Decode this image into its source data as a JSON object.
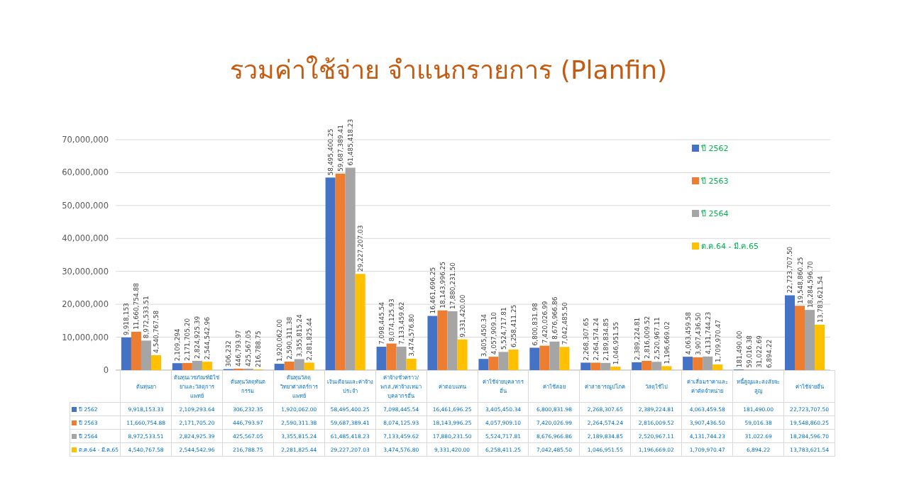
{
  "chart_data": [
    {
      "type": "bar",
      "title": "รวมค่าใช้จ่าย จำแนกรายการ (Planfin)",
      "categories": [
        null,
        null,
        null,
        null,
        null,
        null,
        null,
        null,
        null,
        null,
        null,
        null,
        null,
        null
      ],
      "series": [
        {
          "name": "ปี 2562",
          "color": "#4472c4",
          "values": [
            9918153.33,
            2109293.64,
            306232.35,
            1920062.0,
            58495400.25,
            7098445.54,
            16461696.25,
            3405450.34,
            6800831.98,
            2268307.65,
            2389224.81,
            4063459.58,
            181490.0,
            22723707.5
          ],
          "value_labels": [
            "9,918,153",
            "2,109,294",
            "306,232",
            "1,920,062.00",
            "58,495,400.25",
            "7,098,445.54",
            "16,461,696.25",
            "3,405,450.34",
            "6,800,831.98",
            "2,268,307.65",
            "2,389,224.81",
            "4,063,459.58",
            "181,490.00",
            "22,723,707.50"
          ]
        },
        {
          "name": "ปี 2563",
          "color": "#ed7d31",
          "values": [
            11660754.88,
            2171705.2,
            446793.97,
            2590311.38,
            59687389.41,
            8074125.93,
            18143996.25,
            4057909.1,
            7420026.99,
            2264574.24,
            2816009.52,
            3907436.5,
            59016.38,
            19548860.25
          ],
          "value_labels": [
            "11,660,754.88",
            "2,171,705.20",
            "446,793.97",
            "2,590,311.38",
            "59,687,389.41",
            "8,074,125.93",
            "18,143,996.25",
            "4,057,909.10",
            "7,420,026.99",
            "2,264,574.24",
            "2,816,009.52",
            "3,907,436.50",
            "59,016.38",
            "19,548,860.25"
          ]
        },
        {
          "name": "ปี 2564",
          "color": "#a5a5a5",
          "values": [
            8972533.51,
            2824925.39,
            425567.05,
            3355815.24,
            61485418.23,
            7133459.62,
            17880231.5,
            5524717.81,
            8676966.86,
            2189834.85,
            2520967.11,
            4131744.23,
            31022.69,
            18284596.7
          ],
          "value_labels": [
            "8,972,533.51",
            "2,824,925.39",
            "425,567.05",
            "3,355,815.24",
            "61,485,418.23",
            "7,133,459.62",
            "17,880,231.50",
            "5,524,717.81",
            "8,676,966.86",
            "2,189,834.85",
            "2,520,967.11",
            "4,131,744.23",
            "31,022.69",
            "18,284,596.70"
          ]
        },
        {
          "name": "ต.ค.64 - มี.ค.65",
          "color": "#ffc000",
          "values": [
            4540767.58,
            2544542.96,
            216788.75,
            2281825.44,
            29227207.03,
            3474576.8,
            9331420.0,
            6258411.25,
            7042485.5,
            1046951.55,
            1196669.02,
            1709970.47,
            6894.22,
            13783621.54
          ],
          "value_labels": [
            "4,540,767.58",
            "2,544,542.96",
            "216,788.75",
            "2,281,825.44",
            "29,227,207.03",
            "3,474,576.80",
            "9,331,420.00",
            "6,258,411.25",
            "7,042,485.50",
            "1,046,951.55",
            "1,196,669.02",
            "1,709,970.47",
            "6,894.22",
            "13,783,621.54"
          ]
        }
      ],
      "ylim": [
        0,
        70000000
      ],
      "yticks": [
        {
          "value": 0,
          "label": "0"
        },
        {
          "value": 10000000,
          "label": "10,000,000"
        },
        {
          "value": 20000000,
          "label": "20,000,000"
        },
        {
          "value": 30000000,
          "label": "30,000,000"
        },
        {
          "value": 40000000,
          "label": "40,000,000"
        },
        {
          "value": 50000000,
          "label": "50,000,000"
        },
        {
          "value": 60000000,
          "label": "60,000,000"
        },
        {
          "value": 70000000,
          "label": "70,000,000"
        }
      ],
      "grid": "y",
      "legend": "top right"
    },
    {
      "type": "other",
      "categories": [
        "ต้นทุนยา",
        "ต้นทุนเวชภัณฑ์มิใช่ยาและวัสดุการแพทย์",
        "ต้นทุนวัสดุทันตกรรม",
        "ต้นทุนวัสดุวิทยาศาสตร์การแพทย์",
        "เงินเดือนและค่าจ้างประจำ",
        "ค่าจ้างชั่วคราว/พกส./ค่าจ้างเหมาบุคลากรอื่น",
        "ค่าตอบแทน",
        "ค่าใช้จ่ายบุคลากรอื่น",
        "ค่าใช้สอย",
        "ค่าสาธารณูปโภค",
        "วัสดุใช้ไป",
        "ค่าเสื่อมราคาและค่าตัดจำหน่าย",
        "หนี้สูญและสงสัยจะสูญ",
        "ค่าใช้จ่ายอื่น"
      ],
      "y_categories": [
        "ปี 2562",
        "ปี 2563",
        "ปี 2564",
        "ต.ค.64 - มี.ค.65"
      ],
      "cell_labels": [
        [
          "9,918,153.33",
          "2,109,293.64",
          "306,232.35",
          "1,920,062.00",
          "58,495,400.25",
          "7,098,445.54",
          "16,461,696.25",
          "3,405,450.34",
          "6,800,831.98",
          "2,268,307.65",
          "2,389,224.81",
          "4,063,459.58",
          "181,490.00",
          "22,723,707.50"
        ],
        [
          "11,660,754.88",
          "2,171,705.20",
          "446,793.97",
          "2,590,311.38",
          "59,687,389.41",
          "8,074,125.93",
          "18,143,996.25",
          "4,057,909.10",
          "7,420,026.99",
          "2,264,574.24",
          "2,816,009.52",
          "3,907,436.50",
          "59,016.38",
          "19,548,860.25"
        ],
        [
          "8,972,533.51",
          "2,824,925.39",
          "425,567.05",
          "3,355,815.24",
          "61,485,418.23",
          "7,133,459.62",
          "17,880,231.50",
          "5,524,717.81",
          "8,676,966.86",
          "2,189,834.85",
          "2,520,967.11",
          "4,131,744.23",
          "31,022.69",
          "18,284,596.70"
        ],
        [
          "4,540,767.58",
          "2,544,542.96",
          "216,788.75",
          "2,281,825.44",
          "29,227,207.03",
          "3,474,576.80",
          "9,331,420.00",
          "6,258,411.25",
          "7,042,485.50",
          "1,046,951.55",
          "1,196,669.02",
          "1,709,970.47",
          "6,894.22",
          "13,783,621.54"
        ]
      ]
    }
  ]
}
